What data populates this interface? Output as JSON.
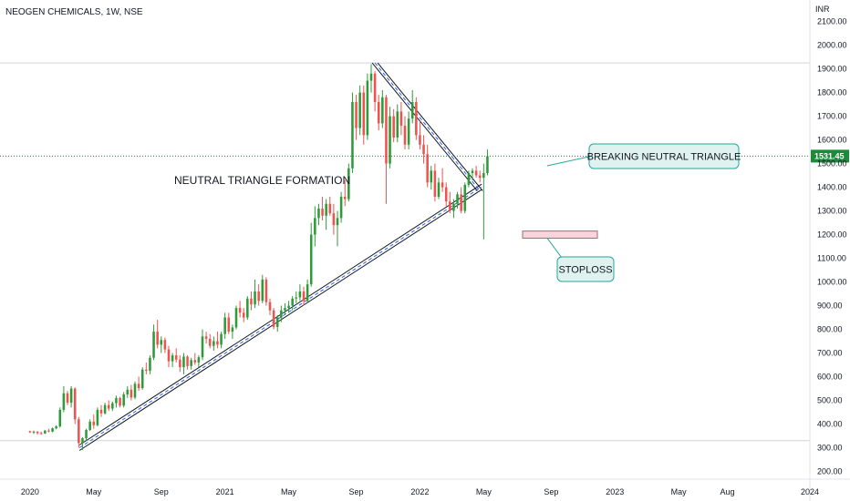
{
  "header": {
    "title": "NEOGEN CHEMICALS, 1W, NSE"
  },
  "currency": "INR",
  "colors": {
    "up": "#26a69a",
    "down": "#ef5350",
    "up_alt": "#2e9b3a",
    "trendline": "#131722",
    "dashed": "#2962ff",
    "callout_bg": "#e0f2ef",
    "callout_border": "#26a69a",
    "stop_fill": "#f4d7dc",
    "stop_border": "#9e6e76",
    "price_tag": "#1b8a3a",
    "grid_h": "#d1d4dc"
  },
  "chart_data": {
    "type": "candlestick",
    "y_ticks": [
      "200.00",
      "300.00",
      "400.00",
      "500.00",
      "600.00",
      "700.00",
      "800.00",
      "900.00",
      "1000.00",
      "1100.00",
      "1200.00",
      "1300.00",
      "1400.00",
      "1500.00",
      "1600.00",
      "1700.00",
      "1800.00",
      "1900.00",
      "2000.00",
      "2100.00"
    ],
    "y_tick_values": [
      200,
      300,
      400,
      500,
      600,
      700,
      800,
      900,
      1000,
      1100,
      1200,
      1300,
      1400,
      1500,
      1600,
      1700,
      1800,
      1900,
      2000,
      2100
    ],
    "ylim": [
      175,
      2160
    ],
    "x_ticks": [
      "2020",
      "May",
      "Sep",
      "2021",
      "May",
      "Sep",
      "2022",
      "May",
      "Sep",
      "2023",
      "May",
      "Aug",
      "2024"
    ],
    "x_tick_values": [
      0,
      17,
      35,
      52,
      69,
      87,
      104,
      121,
      139,
      156,
      173,
      186,
      208
    ],
    "xlim": [
      -8,
      208
    ],
    "current_price": "1531.45",
    "current_price_value": 1531.45,
    "candles": [
      [
        370,
        372,
        362,
        365
      ],
      [
        365,
        372,
        358,
        368
      ],
      [
        368,
        370,
        355,
        362
      ],
      [
        362,
        368,
        355,
        360
      ],
      [
        360,
        375,
        358,
        372
      ],
      [
        372,
        380,
        365,
        368
      ],
      [
        368,
        385,
        365,
        382
      ],
      [
        382,
        395,
        378,
        390
      ],
      [
        390,
        470,
        385,
        460
      ],
      [
        460,
        560,
        450,
        530
      ],
      [
        530,
        540,
        480,
        490
      ],
      [
        490,
        560,
        470,
        550
      ],
      [
        550,
        555,
        400,
        420
      ],
      [
        420,
        430,
        300,
        320
      ],
      [
        320,
        345,
        290,
        340
      ],
      [
        340,
        380,
        330,
        375
      ],
      [
        375,
        420,
        370,
        410
      ],
      [
        410,
        440,
        380,
        395
      ],
      [
        395,
        470,
        390,
        460
      ],
      [
        460,
        480,
        430,
        445
      ],
      [
        445,
        490,
        440,
        480
      ],
      [
        480,
        500,
        455,
        465
      ],
      [
        465,
        495,
        455,
        488
      ],
      [
        488,
        520,
        470,
        510
      ],
      [
        510,
        515,
        470,
        478
      ],
      [
        478,
        535,
        470,
        525
      ],
      [
        525,
        560,
        510,
        545
      ],
      [
        545,
        565,
        500,
        512
      ],
      [
        512,
        580,
        505,
        570
      ],
      [
        570,
        600,
        540,
        552
      ],
      [
        552,
        640,
        545,
        630
      ],
      [
        630,
        660,
        610,
        625
      ],
      [
        625,
        690,
        610,
        680
      ],
      [
        680,
        820,
        670,
        790
      ],
      [
        790,
        840,
        720,
        735
      ],
      [
        735,
        770,
        700,
        755
      ],
      [
        755,
        765,
        700,
        715
      ],
      [
        715,
        730,
        640,
        665
      ],
      [
        665,
        700,
        640,
        690
      ],
      [
        690,
        720,
        660,
        672
      ],
      [
        672,
        690,
        620,
        640
      ],
      [
        640,
        700,
        610,
        685
      ],
      [
        685,
        690,
        630,
        645
      ],
      [
        645,
        680,
        630,
        670
      ],
      [
        670,
        700,
        650,
        660
      ],
      [
        660,
        690,
        640,
        682
      ],
      [
        682,
        800,
        670,
        770
      ],
      [
        770,
        790,
        740,
        760
      ],
      [
        760,
        780,
        720,
        730
      ],
      [
        730,
        770,
        710,
        750
      ],
      [
        750,
        790,
        720,
        735
      ],
      [
        735,
        790,
        720,
        780
      ],
      [
        780,
        870,
        760,
        850
      ],
      [
        850,
        870,
        780,
        790
      ],
      [
        790,
        820,
        760,
        808
      ],
      [
        808,
        900,
        800,
        890
      ],
      [
        890,
        920,
        850,
        870
      ],
      [
        870,
        890,
        830,
        850
      ],
      [
        850,
        940,
        840,
        930
      ],
      [
        930,
        960,
        880,
        905
      ],
      [
        905,
        1010,
        890,
        960
      ],
      [
        960,
        990,
        900,
        920
      ],
      [
        920,
        1030,
        910,
        1010
      ],
      [
        1010,
        1020,
        900,
        915
      ],
      [
        915,
        930,
        860,
        880
      ],
      [
        880,
        890,
        800,
        810
      ],
      [
        810,
        860,
        790,
        850
      ],
      [
        850,
        900,
        830,
        880
      ],
      [
        880,
        910,
        860,
        890
      ],
      [
        890,
        920,
        870,
        900
      ],
      [
        900,
        940,
        880,
        930
      ],
      [
        930,
        960,
        910,
        935
      ],
      [
        935,
        990,
        920,
        960
      ],
      [
        960,
        980,
        900,
        920
      ],
      [
        920,
        1010,
        910,
        990
      ],
      [
        990,
        1250,
        980,
        1200
      ],
      [
        1200,
        1320,
        1150,
        1270
      ],
      [
        1270,
        1330,
        1240,
        1310
      ],
      [
        1310,
        1360,
        1260,
        1280
      ],
      [
        1280,
        1350,
        1220,
        1330
      ],
      [
        1330,
        1360,
        1280,
        1290
      ],
      [
        1290,
        1330,
        1200,
        1240
      ],
      [
        1240,
        1300,
        1150,
        1270
      ],
      [
        1270,
        1380,
        1250,
        1360
      ],
      [
        1360,
        1430,
        1320,
        1350
      ],
      [
        1350,
        1500,
        1340,
        1480
      ],
      [
        1480,
        1800,
        1460,
        1760
      ],
      [
        1760,
        1790,
        1600,
        1650
      ],
      [
        1650,
        1830,
        1620,
        1800
      ],
      [
        1800,
        1830,
        1580,
        1620
      ],
      [
        1620,
        1880,
        1600,
        1850
      ],
      [
        1850,
        1920,
        1800,
        1880
      ],
      [
        1880,
        1890,
        1720,
        1760
      ],
      [
        1760,
        1790,
        1640,
        1670
      ],
      [
        1670,
        1810,
        1650,
        1780
      ],
      [
        1780,
        1790,
        1330,
        1500
      ],
      [
        1500,
        1740,
        1480,
        1700
      ],
      [
        1700,
        1730,
        1590,
        1610
      ],
      [
        1610,
        1750,
        1590,
        1720
      ],
      [
        1720,
        1760,
        1620,
        1660
      ],
      [
        1660,
        1700,
        1560,
        1580
      ],
      [
        1580,
        1720,
        1560,
        1690
      ],
      [
        1690,
        1810,
        1670,
        1760
      ],
      [
        1760,
        1780,
        1600,
        1620
      ],
      [
        1620,
        1680,
        1560,
        1580
      ],
      [
        1580,
        1620,
        1500,
        1540
      ],
      [
        1540,
        1580,
        1400,
        1420
      ],
      [
        1420,
        1490,
        1390,
        1470
      ],
      [
        1470,
        1500,
        1340,
        1360
      ],
      [
        1360,
        1440,
        1350,
        1420
      ],
      [
        1420,
        1480,
        1380,
        1400
      ],
      [
        1400,
        1420,
        1320,
        1340
      ],
      [
        1340,
        1380,
        1290,
        1300
      ],
      [
        1300,
        1350,
        1270,
        1330
      ],
      [
        1330,
        1380,
        1310,
        1370
      ],
      [
        1370,
        1400,
        1290,
        1300
      ],
      [
        1300,
        1420,
        1290,
        1410
      ],
      [
        1410,
        1470,
        1400,
        1460
      ],
      [
        1460,
        1480,
        1430,
        1470
      ],
      [
        1470,
        1490,
        1440,
        1450
      ],
      [
        1450,
        1470,
        1420,
        1440
      ],
      [
        1440,
        1500,
        1180,
        1460
      ],
      [
        1460,
        1560,
        1450,
        1531
      ]
    ]
  },
  "annotations": {
    "pattern_label": "NEUTRAL TRIANGLE FORMATION",
    "breakout_label": "BREAKING NEUTRAL TRIANGLE",
    "stop_label": "STOPLOSS"
  }
}
